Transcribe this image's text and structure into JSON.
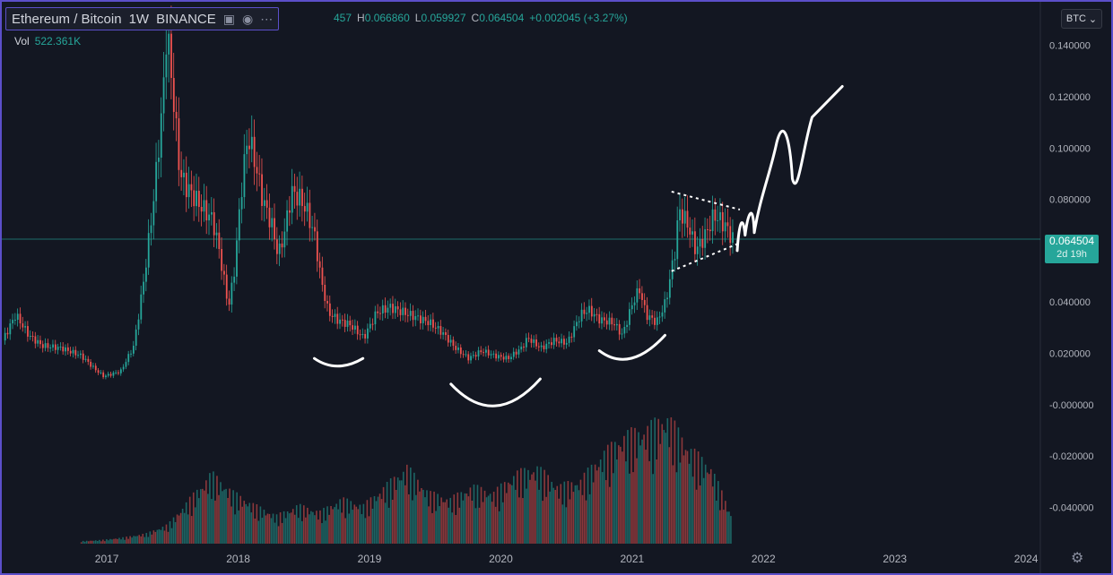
{
  "header": {
    "symbol": "Ethereum / Bitcoin",
    "interval": "1W",
    "exchange": "BINANCE",
    "icons": [
      "compare-icon",
      "eye-icon",
      "more-icon"
    ]
  },
  "ohlc": {
    "open_partial": "457",
    "high_label": "H",
    "high": "0.066860",
    "low_label": "L",
    "low": "0.059927",
    "close_label": "C",
    "close": "0.064504",
    "change": "+0.002045 (+3.27%)"
  },
  "volume": {
    "label": "Vol",
    "value": "522.361K"
  },
  "currency_button": "BTC",
  "price_tag": {
    "value": "0.064504",
    "countdown": "2d 19h"
  },
  "colors": {
    "up": "#26a69a",
    "down": "#ef5350",
    "background": "#131722",
    "frame": "#5b4fc9",
    "price_line": "#26a69a",
    "annotation": "#ffffff"
  },
  "chart_data": {
    "type": "candlestick",
    "title": "Ethereum / Bitcoin · 1W · BINANCE",
    "x_tick_labels": [
      "2017",
      "2018",
      "2019",
      "2020",
      "2021",
      "2022",
      "2023",
      "2024"
    ],
    "y_tick_labels": [
      "0.140000",
      "0.120000",
      "0.100000",
      "0.080000",
      "0.040000",
      "0.020000",
      "-0.000000",
      "-0.020000",
      "-0.040000"
    ],
    "ylim": [
      -0.05,
      0.15
    ],
    "xlim": [
      2016.2,
      2024.6
    ],
    "price_close_points": [
      [
        2016.2,
        0.025
      ],
      [
        2016.3,
        0.035
      ],
      [
        2016.4,
        0.027
      ],
      [
        2016.5,
        0.023
      ],
      [
        2016.65,
        0.022
      ],
      [
        2016.8,
        0.019
      ],
      [
        2016.9,
        0.014
      ],
      [
        2016.97,
        0.011
      ],
      [
        2017.1,
        0.013
      ],
      [
        2017.2,
        0.023
      ],
      [
        2017.28,
        0.05
      ],
      [
        2017.35,
        0.08
      ],
      [
        2017.42,
        0.118
      ],
      [
        2017.45,
        0.147
      ],
      [
        2017.5,
        0.12
      ],
      [
        2017.55,
        0.09
      ],
      [
        2017.6,
        0.085
      ],
      [
        2017.7,
        0.078
      ],
      [
        2017.8,
        0.072
      ],
      [
        2017.85,
        0.06
      ],
      [
        2017.92,
        0.038
      ],
      [
        2017.96,
        0.05
      ],
      [
        2018.03,
        0.09
      ],
      [
        2018.07,
        0.105
      ],
      [
        2018.12,
        0.095
      ],
      [
        2018.18,
        0.08
      ],
      [
        2018.25,
        0.07
      ],
      [
        2018.3,
        0.058
      ],
      [
        2018.35,
        0.068
      ],
      [
        2018.4,
        0.083
      ],
      [
        2018.47,
        0.08
      ],
      [
        2018.52,
        0.075
      ],
      [
        2018.58,
        0.065
      ],
      [
        2018.62,
        0.05
      ],
      [
        2018.68,
        0.036
      ],
      [
        2018.75,
        0.033
      ],
      [
        2018.85,
        0.031
      ],
      [
        2018.95,
        0.026
      ],
      [
        2019.05,
        0.036
      ],
      [
        2019.15,
        0.038
      ],
      [
        2019.3,
        0.035
      ],
      [
        2019.45,
        0.032
      ],
      [
        2019.55,
        0.028
      ],
      [
        2019.65,
        0.022
      ],
      [
        2019.75,
        0.018
      ],
      [
        2019.85,
        0.021
      ],
      [
        2019.95,
        0.019
      ],
      [
        2020.05,
        0.018
      ],
      [
        2020.15,
        0.022
      ],
      [
        2020.2,
        0.026
      ],
      [
        2020.3,
        0.022
      ],
      [
        2020.4,
        0.025
      ],
      [
        2020.5,
        0.024
      ],
      [
        2020.6,
        0.035
      ],
      [
        2020.66,
        0.037
      ],
      [
        2020.75,
        0.033
      ],
      [
        2020.85,
        0.032
      ],
      [
        2020.92,
        0.027
      ],
      [
        2021.0,
        0.04
      ],
      [
        2021.05,
        0.045
      ],
      [
        2021.1,
        0.035
      ],
      [
        2021.18,
        0.032
      ],
      [
        2021.25,
        0.04
      ],
      [
        2021.32,
        0.06
      ],
      [
        2021.35,
        0.076
      ],
      [
        2021.42,
        0.07
      ],
      [
        2021.48,
        0.06
      ],
      [
        2021.55,
        0.066
      ],
      [
        2021.62,
        0.074
      ],
      [
        2021.7,
        0.07
      ],
      [
        2021.76,
        0.0645
      ]
    ],
    "volume_heights_relative": [
      0.02,
      0.03,
      0.05,
      0.08,
      0.15,
      0.35,
      0.55,
      0.4,
      0.3,
      0.22,
      0.3,
      0.25,
      0.35,
      0.3,
      0.45,
      0.6,
      0.4,
      0.35,
      0.45,
      0.4,
      0.55,
      0.6,
      0.45,
      0.5,
      0.7,
      0.85,
      0.9,
      1.0,
      0.75,
      0.6,
      0.2
    ],
    "current_price": 0.064504,
    "annotations": [
      "cup-shapes",
      "symmetric-triangle",
      "projected-breakout-arrow"
    ]
  }
}
